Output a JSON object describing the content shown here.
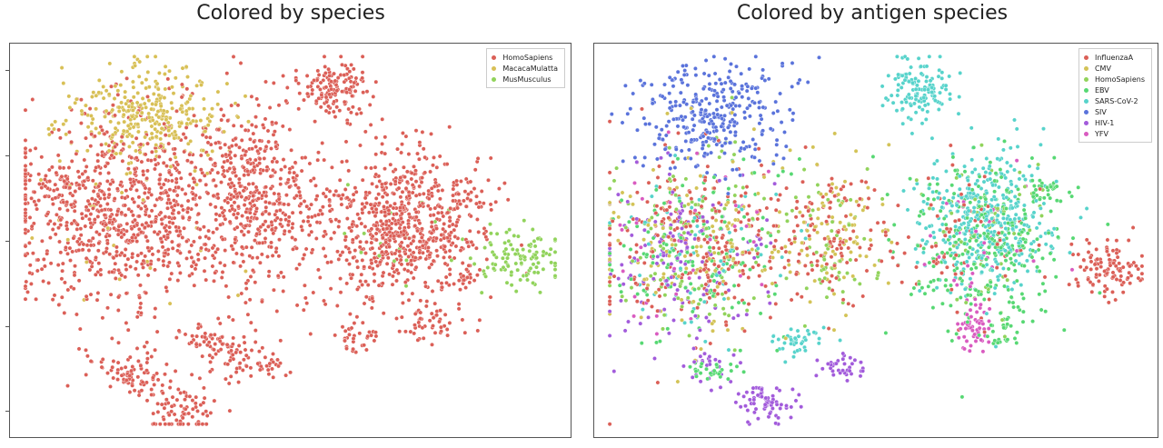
{
  "panels": [
    {
      "title": "Colored by species",
      "legend": [
        {
          "label": "HomoSapiens",
          "color": "#db5f57"
        },
        {
          "label": "MacacaMulatta",
          "color": "#d8c056"
        },
        {
          "label": "MusMusculus",
          "color": "#91d35b"
        }
      ]
    },
    {
      "title": "Colored by antigen species",
      "legend": [
        {
          "label": "InfluenzaA",
          "color": "#db5f57"
        },
        {
          "label": "CMV",
          "color": "#d3c357"
        },
        {
          "label": "HomoSapiens",
          "color": "#91d35b"
        },
        {
          "label": "EBV",
          "color": "#57d873"
        },
        {
          "label": "SARS-CoV-2",
          "color": "#57d3cb"
        },
        {
          "label": "SIV",
          "color": "#5a73db"
        },
        {
          "label": "HIV-1",
          "color": "#a25bdb"
        },
        {
          "label": "YFV",
          "color": "#d95bc0"
        }
      ]
    }
  ],
  "chart_data": [
    {
      "type": "scatter",
      "title": "Colored by species",
      "xlabel": "",
      "ylabel": "",
      "legend_position": "top-right",
      "grid": false,
      "series": [
        {
          "name": "HomoSapiens",
          "color": "#db5f57",
          "clusters": [
            {
              "cx": 0.2,
              "cy": 0.43,
              "sx": 0.11,
              "sy": 0.13,
              "n": 900
            },
            {
              "cx": 0.08,
              "cy": 0.37,
              "sx": 0.03,
              "sy": 0.03,
              "n": 40
            },
            {
              "cx": 0.44,
              "cy": 0.38,
              "sx": 0.05,
              "sy": 0.12,
              "n": 420
            },
            {
              "cx": 0.7,
              "cy": 0.46,
              "sx": 0.08,
              "sy": 0.1,
              "n": 760
            },
            {
              "cx": 0.58,
              "cy": 0.1,
              "sx": 0.03,
              "sy": 0.04,
              "n": 140
            },
            {
              "cx": 0.21,
              "cy": 0.85,
              "sx": 0.03,
              "sy": 0.03,
              "n": 80
            },
            {
              "cx": 0.3,
              "cy": 0.95,
              "sx": 0.03,
              "sy": 0.03,
              "n": 80
            },
            {
              "cx": 0.42,
              "cy": 0.82,
              "sx": 0.04,
              "sy": 0.03,
              "n": 70
            },
            {
              "cx": 0.36,
              "cy": 0.76,
              "sx": 0.03,
              "sy": 0.02,
              "n": 55
            },
            {
              "cx": 0.75,
              "cy": 0.72,
              "sx": 0.025,
              "sy": 0.02,
              "n": 40
            },
            {
              "cx": 0.82,
              "cy": 0.6,
              "sx": 0.01,
              "sy": 0.01,
              "n": 14
            },
            {
              "cx": 0.62,
              "cy": 0.75,
              "sx": 0.02,
              "sy": 0.03,
              "n": 35
            },
            {
              "cx": 0.82,
              "cy": 0.38,
              "sx": 0.015,
              "sy": 0.015,
              "n": 20
            }
          ]
        },
        {
          "name": "MacacaMulatta",
          "color": "#d8c056",
          "clusters": [
            {
              "cx": 0.24,
              "cy": 0.17,
              "sx": 0.07,
              "sy": 0.07,
              "n": 320
            },
            {
              "cx": 0.2,
              "cy": 0.45,
              "sx": 0.1,
              "sy": 0.12,
              "n": 30
            }
          ]
        },
        {
          "name": "MusMusculus",
          "color": "#91d35b",
          "clusters": [
            {
              "cx": 0.92,
              "cy": 0.55,
              "sx": 0.04,
              "sy": 0.035,
              "n": 110
            },
            {
              "cx": 0.7,
              "cy": 0.5,
              "sx": 0.06,
              "sy": 0.06,
              "n": 15
            }
          ]
        }
      ]
    },
    {
      "type": "scatter",
      "title": "Colored by antigen species",
      "xlabel": "",
      "ylabel": "",
      "legend_position": "top-right",
      "grid": false,
      "series": [
        {
          "name": "InfluenzaA",
          "color": "#db5f57",
          "clusters": [
            {
              "cx": 0.17,
              "cy": 0.5,
              "sx": 0.09,
              "sy": 0.12,
              "n": 260
            },
            {
              "cx": 0.42,
              "cy": 0.5,
              "sx": 0.05,
              "sy": 0.1,
              "n": 120
            },
            {
              "cx": 0.66,
              "cy": 0.5,
              "sx": 0.06,
              "sy": 0.1,
              "n": 80
            },
            {
              "cx": 0.92,
              "cy": 0.58,
              "sx": 0.04,
              "sy": 0.04,
              "n": 110
            }
          ]
        },
        {
          "name": "CMV",
          "color": "#d3c357",
          "clusters": [
            {
              "cx": 0.17,
              "cy": 0.5,
              "sx": 0.09,
              "sy": 0.12,
              "n": 140
            },
            {
              "cx": 0.42,
              "cy": 0.48,
              "sx": 0.05,
              "sy": 0.1,
              "n": 90
            }
          ]
        },
        {
          "name": "HomoSapiens",
          "color": "#91d35b",
          "clusters": [
            {
              "cx": 0.17,
              "cy": 0.5,
              "sx": 0.09,
              "sy": 0.12,
              "n": 120
            },
            {
              "cx": 0.42,
              "cy": 0.5,
              "sx": 0.05,
              "sy": 0.1,
              "n": 60
            },
            {
              "cx": 0.7,
              "cy": 0.5,
              "sx": 0.07,
              "sy": 0.1,
              "n": 60
            }
          ]
        },
        {
          "name": "EBV",
          "color": "#57d873",
          "clusters": [
            {
              "cx": 0.17,
              "cy": 0.52,
              "sx": 0.09,
              "sy": 0.12,
              "n": 140
            },
            {
              "cx": 0.7,
              "cy": 0.5,
              "sx": 0.07,
              "sy": 0.11,
              "n": 300
            },
            {
              "cx": 0.81,
              "cy": 0.37,
              "sx": 0.015,
              "sy": 0.015,
              "n": 25
            },
            {
              "cx": 0.73,
              "cy": 0.75,
              "sx": 0.02,
              "sy": 0.02,
              "n": 25
            },
            {
              "cx": 0.2,
              "cy": 0.85,
              "sx": 0.025,
              "sy": 0.02,
              "n": 30
            }
          ]
        },
        {
          "name": "SARS-CoV-2",
          "color": "#57d3cb",
          "clusters": [
            {
              "cx": 0.7,
              "cy": 0.45,
              "sx": 0.06,
              "sy": 0.09,
              "n": 380
            },
            {
              "cx": 0.58,
              "cy": 0.1,
              "sx": 0.03,
              "sy": 0.04,
              "n": 130
            },
            {
              "cx": 0.36,
              "cy": 0.76,
              "sx": 0.03,
              "sy": 0.02,
              "n": 40
            },
            {
              "cx": 0.17,
              "cy": 0.55,
              "sx": 0.09,
              "sy": 0.12,
              "n": 70
            }
          ]
        },
        {
          "name": "SIV",
          "color": "#5a73db",
          "clusters": [
            {
              "cx": 0.2,
              "cy": 0.17,
              "sx": 0.07,
              "sy": 0.07,
              "n": 330
            }
          ]
        },
        {
          "name": "HIV-1",
          "color": "#a25bdb",
          "clusters": [
            {
              "cx": 0.14,
              "cy": 0.55,
              "sx": 0.08,
              "sy": 0.12,
              "n": 150
            },
            {
              "cx": 0.3,
              "cy": 0.93,
              "sx": 0.025,
              "sy": 0.025,
              "n": 70
            },
            {
              "cx": 0.44,
              "cy": 0.83,
              "sx": 0.025,
              "sy": 0.02,
              "n": 35
            },
            {
              "cx": 0.2,
              "cy": 0.83,
              "sx": 0.025,
              "sy": 0.025,
              "n": 25
            }
          ]
        },
        {
          "name": "YFV",
          "color": "#d95bc0",
          "clusters": [
            {
              "cx": 0.68,
              "cy": 0.73,
              "sx": 0.015,
              "sy": 0.03,
              "n": 60
            },
            {
              "cx": 0.17,
              "cy": 0.5,
              "sx": 0.09,
              "sy": 0.12,
              "n": 40
            },
            {
              "cx": 0.7,
              "cy": 0.5,
              "sx": 0.07,
              "sy": 0.1,
              "n": 30
            }
          ]
        }
      ]
    }
  ]
}
